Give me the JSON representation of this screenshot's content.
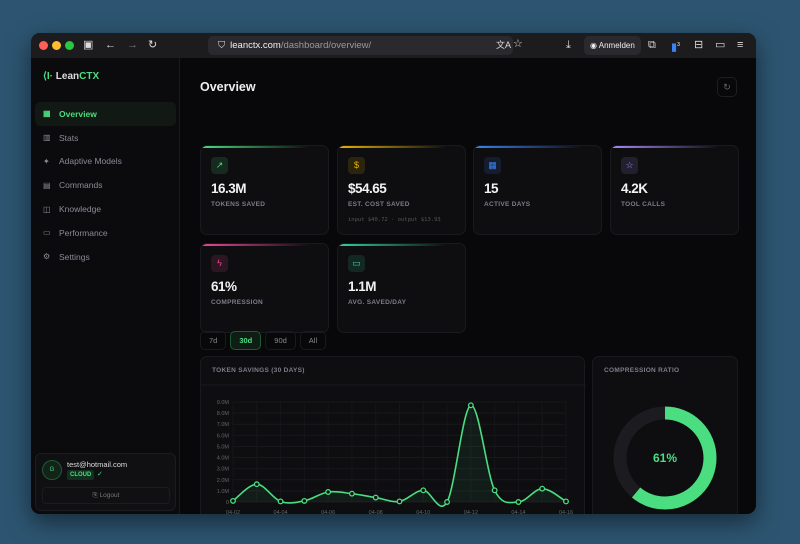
{
  "browser": {
    "url_host": "leanctx.com",
    "url_path": "/dashboard/overview/",
    "signin": "Anmelden",
    "ext_badge": "3"
  },
  "sidebar": {
    "logo_a": "Lean",
    "logo_b": "CTX",
    "items": [
      {
        "label": "Overview",
        "icon": "grid-icon",
        "active": true
      },
      {
        "label": "Stats",
        "icon": "bar-chart-icon"
      },
      {
        "label": "Adaptive Models",
        "icon": "sparkle-icon"
      },
      {
        "label": "Commands",
        "icon": "terminal-icon"
      },
      {
        "label": "Knowledge",
        "icon": "book-icon"
      },
      {
        "label": "Performance",
        "icon": "monitor-icon"
      },
      {
        "label": "Settings",
        "icon": "gear-icon"
      }
    ],
    "user": {
      "avatar": "G",
      "email": "test@hotmail.com",
      "plan": "CLOUD",
      "logout": "Logout"
    }
  },
  "main": {
    "title": "Overview",
    "cards": [
      {
        "value": "16.3M",
        "label": "TOKENS SAVED",
        "color": "#4ade80",
        "icon": "trending-up-icon"
      },
      {
        "value": "$54.65",
        "label": "EST. COST SAVED",
        "sub": "input $40.72 · output $13.93",
        "color": "#eab308",
        "icon": "dollar-icon"
      },
      {
        "value": "15",
        "label": "ACTIVE DAYS",
        "color": "#3b82f6",
        "icon": "calendar-icon"
      },
      {
        "value": "4.2K",
        "label": "TOOL CALLS",
        "color": "#a78bfa",
        "icon": "star-icon"
      },
      {
        "value": "61%",
        "label": "COMPRESSION",
        "color": "#ec4899",
        "icon": "zap-icon"
      },
      {
        "value": "1.1M",
        "label": "AVG. SAVED/DAY",
        "color": "#34d399",
        "icon": "monitor-icon"
      }
    ],
    "ranges": [
      "7d",
      "30d",
      "90d",
      "All"
    ],
    "active_range": "30d",
    "savings_title": "TOKEN SAVINGS (30 DAYS)",
    "ratio_title": "COMPRESSION RATIO"
  },
  "chart_data": [
    {
      "type": "area",
      "x": [
        "04-02",
        "04-03",
        "04-04",
        "04-05",
        "04-06",
        "04-07",
        "04-08",
        "04-09",
        "04-10",
        "04-11",
        "04-12",
        "04-13",
        "04-14",
        "04-15",
        "04-16"
      ],
      "values": [
        0.1,
        1.6,
        0.05,
        0.1,
        0.9,
        0.75,
        0.4,
        0.05,
        1.05,
        0,
        8.7,
        1.05,
        0,
        1.2,
        0.05
      ],
      "x_ticks": [
        "04-02",
        "04-04",
        "04-06",
        "04-08",
        "04-10",
        "04-12",
        "04-14",
        "04-16"
      ],
      "y_ticks": [
        "0",
        "1.0M",
        "2.0M",
        "3.0M",
        "4.0M",
        "5.0M",
        "6.0M",
        "7.0M",
        "8.0M",
        "9.0M"
      ],
      "unit": "millions",
      "ylim": [
        0,
        9
      ],
      "color": "#4ade80",
      "grid": true
    },
    {
      "type": "pie",
      "values": [
        61,
        39
      ],
      "center_label": "61%",
      "color": "#4ade80"
    }
  ]
}
